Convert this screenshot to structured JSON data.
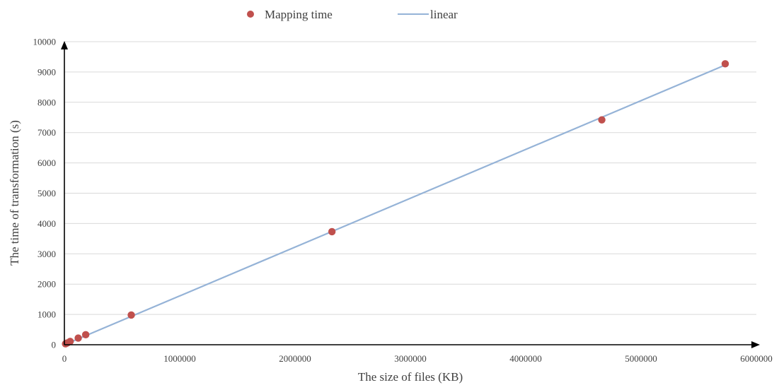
{
  "chart_data": {
    "type": "scatter",
    "title": "",
    "xlabel": "The size of files (KB)",
    "ylabel": "The time of transformation  (s)",
    "xlim": [
      0,
      6000000
    ],
    "ylim": [
      0,
      10000
    ],
    "x_ticks": [
      0,
      1000000,
      2000000,
      3000000,
      4000000,
      5000000,
      6000000
    ],
    "x_tick_labels": [
      "0",
      "1000000",
      "2000000",
      "3000000",
      "4000000",
      "5000000",
      "6000000"
    ],
    "y_ticks": [
      0,
      1000,
      2000,
      3000,
      4000,
      5000,
      6000,
      7000,
      8000,
      9000,
      10000
    ],
    "y_tick_labels": [
      "0",
      "1000",
      "2000",
      "3000",
      "4000",
      "5000",
      "6000",
      "7000",
      "8000",
      "9000",
      "10000"
    ],
    "grid": {
      "horizontal": true,
      "vertical": false
    },
    "legend_position": "top-center",
    "series": [
      {
        "name": "Mapping time",
        "kind": "points",
        "color": "#c0504d",
        "x": [
          10000,
          25000,
          50000,
          120000,
          185000,
          580000,
          2320000,
          4660000,
          5730000
        ],
        "y": [
          30,
          60,
          110,
          220,
          330,
          980,
          3730,
          7420,
          9270
        ]
      },
      {
        "name": "linear",
        "kind": "line",
        "color": "#95b3d7",
        "x": [
          0,
          5730000
        ],
        "y": [
          0,
          9230
        ]
      }
    ],
    "colors": {
      "grid": "#d9d9d9",
      "axis": "#000000",
      "text": "#404040"
    }
  }
}
